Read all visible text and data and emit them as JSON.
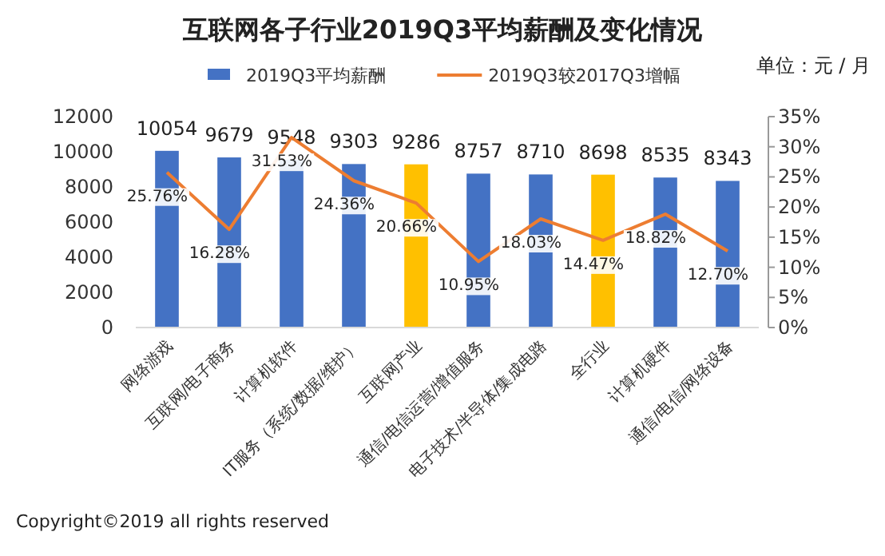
{
  "chart_data": {
    "type": "bar",
    "title": "互联网各子行业2019Q3平均薪酬及变化情况",
    "categories": [
      "网络游戏",
      "互联网/电子商务",
      "计算机软件",
      "IT服务（系统/数据/维护）",
      "互联网产业",
      "通信/电信运营/增值服务",
      "电子技术/半导体/集成电路",
      "全行业",
      "计算机硬件",
      "通信/电信/网络设备"
    ],
    "series": [
      {
        "name": "2019Q3平均薪酬",
        "colors": [
          "#4472c4",
          "#4472c4",
          "#4472c4",
          "#4472c4",
          "#ffc000",
          "#4472c4",
          "#4472c4",
          "#ffc000",
          "#4472c4",
          "#4472c4"
        ],
        "values": [
          10054,
          9679,
          9548,
          9303,
          9286,
          8757,
          8710,
          8698,
          8535,
          8343
        ],
        "value_labels": [
          "10054",
          "9679",
          "9548",
          "9303",
          "9286",
          "8757",
          "8710",
          "8698",
          "8535",
          "8343"
        ]
      },
      {
        "name": "2019Q3较2017Q3增幅",
        "type": "line",
        "axis": "y2",
        "color": "#ed7d31",
        "values": [
          25.76,
          16.28,
          31.53,
          24.36,
          20.66,
          10.95,
          18.03,
          14.47,
          18.82,
          12.7
        ],
        "value_labels": [
          "25.76%",
          "16.28%",
          "31.53%",
          "24.36%",
          "20.66%",
          "10.95%",
          "18.03%",
          "14.47%",
          "18.82%",
          "12.70%"
        ]
      }
    ],
    "ylim": [
      0,
      12000
    ],
    "yticks": [
      0,
      2000,
      4000,
      6000,
      8000,
      10000,
      12000
    ],
    "y2lim": [
      0,
      35
    ],
    "y2ticks": [
      {
        "value": 0,
        "label": "0%"
      },
      {
        "value": 5,
        "label": "5%"
      },
      {
        "value": 10,
        "label": "10%"
      },
      {
        "value": 15,
        "label": "15%"
      },
      {
        "value": 20,
        "label": "20%"
      },
      {
        "value": 25,
        "label": "25%"
      },
      {
        "value": 30,
        "label": "30%"
      },
      {
        "value": 35,
        "label": "35%"
      }
    ],
    "legend": "top",
    "grid": false,
    "annotations": [
      "单位：元 / 月",
      "Copyright©2019 all rights reserved"
    ]
  }
}
